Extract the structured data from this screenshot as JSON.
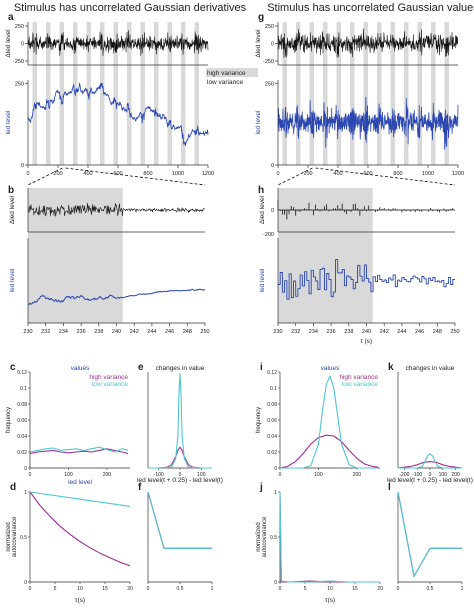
{
  "titles": {
    "left": "Stimulus has uncorrelated Gaussian derivatives",
    "right": "Stimulus has uncorrelated Gaussian values"
  },
  "annotations": {
    "high_variance": "high variance",
    "low_variance": "low variance"
  },
  "colors": {
    "trace_black": "#111111",
    "led_blue": "#2a46b0",
    "shade": "#d9d9d9",
    "high_variance": "#a03090",
    "low_variance": "#4cc6d4",
    "values_title": "#2a46b0"
  },
  "chart_data": [
    {
      "id": "a",
      "type": "line",
      "panel_letter": "a",
      "ylabel_top": "Δled level",
      "ylabel_bottom": "led level",
      "top_yticks": [
        250,
        0,
        -250
      ],
      "bottom_yticks": [
        250,
        0
      ],
      "xticks": [
        0,
        200,
        400,
        600,
        800,
        1000,
        1200
      ],
      "xlim": [
        0,
        1200
      ],
      "shaded_intervals": [
        [
          30,
          60
        ],
        [
          120,
          150
        ],
        [
          210,
          240
        ],
        [
          300,
          330
        ],
        [
          390,
          420
        ],
        [
          480,
          510
        ],
        [
          570,
          600
        ],
        [
          660,
          690
        ],
        [
          750,
          780
        ],
        [
          840,
          870
        ],
        [
          930,
          960
        ],
        [
          1020,
          1050
        ],
        [
          1110,
          1140
        ],
        [
          1200,
          1230
        ]
      ]
    },
    {
      "id": "b",
      "type": "line",
      "panel_letter": "b",
      "ylabel_top": "Δled level",
      "ylabel_bottom": "led level",
      "xticks": [
        230,
        232,
        234,
        236,
        238,
        240,
        242,
        244,
        246,
        248,
        250
      ],
      "xlim": [
        230,
        250
      ],
      "shaded_interval": [
        230,
        240.7
      ]
    },
    {
      "id": "g",
      "type": "line",
      "panel_letter": "g",
      "ylabel_top": "Δled level",
      "ylabel_bottom": "led level",
      "top_yticks": [
        250,
        0,
        -250
      ],
      "bottom_yticks": [
        250,
        0
      ],
      "xticks": [
        0,
        200,
        400,
        600,
        800,
        1000,
        1200
      ],
      "xlim": [
        0,
        1200
      ],
      "shaded_intervals": [
        [
          30,
          60
        ],
        [
          120,
          150
        ],
        [
          210,
          240
        ],
        [
          300,
          330
        ],
        [
          390,
          420
        ],
        [
          480,
          510
        ],
        [
          570,
          600
        ],
        [
          660,
          690
        ],
        [
          750,
          780
        ],
        [
          840,
          870
        ],
        [
          930,
          960
        ],
        [
          1020,
          1050
        ],
        [
          1110,
          1140
        ],
        [
          1200,
          1230
        ]
      ]
    },
    {
      "id": "h",
      "type": "line",
      "panel_letter": "h",
      "ylabel_top": "Δled level",
      "ylabel_bottom": "led level",
      "top_yticks": [
        0,
        -200
      ],
      "xticks": [
        230,
        232,
        234,
        236,
        238,
        240,
        242,
        244,
        246,
        248,
        250
      ],
      "xlim": [
        230,
        250
      ],
      "shaded_interval": [
        230,
        240.7
      ],
      "xlabel": "t (s)"
    },
    {
      "id": "c",
      "type": "line",
      "panel_letter": "c",
      "title": "values",
      "ylabel": "frequency",
      "xlabel": "led level",
      "ylim": [
        0,
        0.12
      ],
      "yticks": [
        0,
        0.02,
        0.04,
        0.06,
        0.08,
        0.1,
        0.12
      ],
      "xlim": [
        0,
        260
      ],
      "xticks": [
        0,
        100,
        200
      ],
      "legend": [
        "high variance",
        "low variance"
      ],
      "series": [
        {
          "name": "high variance",
          "x": [
            0,
            20,
            40,
            60,
            80,
            100,
            120,
            140,
            160,
            180,
            200,
            220,
            240,
            255
          ],
          "y": [
            0.018,
            0.02,
            0.021,
            0.022,
            0.02,
            0.019,
            0.02,
            0.021,
            0.02,
            0.022,
            0.024,
            0.022,
            0.02,
            0.018
          ]
        },
        {
          "name": "low variance",
          "x": [
            0,
            20,
            40,
            60,
            80,
            100,
            120,
            140,
            160,
            180,
            200,
            220,
            240,
            255
          ],
          "y": [
            0.02,
            0.022,
            0.024,
            0.025,
            0.022,
            0.023,
            0.024,
            0.022,
            0.024,
            0.026,
            0.023,
            0.02,
            0.024,
            0.022
          ]
        }
      ]
    },
    {
      "id": "e",
      "type": "line",
      "panel_letter": "e",
      "title": "changes in value",
      "xlabel": "led level(t + 0.25) - led level(t)",
      "ylim": [
        0,
        0.12
      ],
      "xlim": [
        -150,
        150
      ],
      "xticks": [
        -100,
        0,
        100
      ],
      "series": [
        {
          "name": "high variance",
          "x": [
            -150,
            -100,
            -60,
            -40,
            -20,
            -10,
            0,
            10,
            20,
            40,
            60,
            100,
            150
          ],
          "y": [
            0,
            0,
            0.001,
            0.004,
            0.014,
            0.022,
            0.026,
            0.022,
            0.014,
            0.004,
            0.001,
            0,
            0
          ]
        },
        {
          "name": "low variance",
          "x": [
            -150,
            -100,
            -40,
            -20,
            -10,
            -5,
            0,
            5,
            10,
            20,
            40,
            100,
            150
          ],
          "y": [
            0,
            0,
            0.001,
            0.012,
            0.04,
            0.09,
            0.118,
            0.09,
            0.04,
            0.012,
            0.001,
            0,
            0
          ]
        }
      ]
    },
    {
      "id": "d",
      "type": "line",
      "panel_letter": "d",
      "ylabel": "normalized autocovariance",
      "ylim": [
        0,
        1
      ],
      "yticks": [
        0,
        0.5,
        1
      ],
      "xlim": [
        0,
        20
      ],
      "xticks": [
        0,
        5,
        10,
        15,
        20
      ],
      "xlabel": "τ(s)",
      "series": [
        {
          "name": "high variance",
          "x": [
            0,
            2,
            4,
            6,
            8,
            10,
            12,
            14,
            16,
            18,
            20
          ],
          "y": [
            1,
            0.85,
            0.73,
            0.62,
            0.53,
            0.45,
            0.38,
            0.32,
            0.27,
            0.22,
            0.18
          ]
        },
        {
          "name": "low variance",
          "x": [
            0,
            5,
            10,
            15,
            20
          ],
          "y": [
            1,
            0.96,
            0.92,
            0.88,
            0.84
          ]
        }
      ]
    },
    {
      "id": "f",
      "type": "line",
      "panel_letter": "f",
      "ylim": [
        -0.6,
        1
      ],
      "xlim": [
        0,
        1
      ],
      "xticks": [
        0,
        0.5,
        1
      ],
      "series": [
        {
          "name": "high variance",
          "x": [
            0,
            0.25,
            0.5,
            0.75,
            1
          ],
          "y": [
            1,
            0,
            0,
            0,
            0
          ]
        },
        {
          "name": "low variance",
          "x": [
            0,
            0.25,
            0.5,
            0.75,
            1
          ],
          "y": [
            1,
            0,
            0,
            0,
            0
          ]
        }
      ]
    },
    {
      "id": "i",
      "type": "line",
      "panel_letter": "i",
      "title": "values",
      "ylabel": "frequency",
      "ylim": [
        0,
        0.12
      ],
      "yticks": [
        0,
        0.02,
        0.04,
        0.06,
        0.08,
        0.1,
        0.12
      ],
      "xlim": [
        0,
        260
      ],
      "xticks": [
        0,
        100,
        200
      ],
      "legend": [
        "high variance",
        "low variance"
      ],
      "series": [
        {
          "name": "high variance",
          "x": [
            0,
            20,
            40,
            60,
            80,
            100,
            120,
            140,
            160,
            180,
            200,
            220,
            240,
            255
          ],
          "y": [
            0,
            0.002,
            0.008,
            0.018,
            0.03,
            0.038,
            0.041,
            0.04,
            0.033,
            0.022,
            0.012,
            0.005,
            0.002,
            0.001
          ]
        },
        {
          "name": "low variance",
          "x": [
            0,
            60,
            80,
            100,
            110,
            120,
            130,
            140,
            150,
            160,
            180,
            200,
            255
          ],
          "y": [
            0,
            0,
            0.003,
            0.03,
            0.07,
            0.104,
            0.115,
            0.1,
            0.065,
            0.03,
            0.004,
            0,
            0
          ]
        }
      ]
    },
    {
      "id": "k",
      "type": "line",
      "panel_letter": "k",
      "title": "changes in value",
      "xlabel": "led level(t + 0.25) - led level(t)",
      "ylim": [
        0,
        0.12
      ],
      "xlim": [
        -250,
        250
      ],
      "xticks": [
        -200,
        -100,
        0,
        100,
        200
      ],
      "series": [
        {
          "name": "high variance",
          "x": [
            -250,
            -200,
            -150,
            -100,
            -50,
            0,
            50,
            100,
            150,
            200,
            250
          ],
          "y": [
            0,
            0.001,
            0.002,
            0.004,
            0.007,
            0.008,
            0.007,
            0.004,
            0.002,
            0.001,
            0
          ]
        },
        {
          "name": "low variance",
          "x": [
            -250,
            -100,
            -60,
            -40,
            -20,
            0,
            20,
            40,
            60,
            100,
            250
          ],
          "y": [
            0,
            0,
            0.002,
            0.008,
            0.015,
            0.018,
            0.015,
            0.008,
            0.002,
            0,
            0
          ]
        }
      ]
    },
    {
      "id": "j",
      "type": "line",
      "panel_letter": "j",
      "ylabel": "normalized autocovariance",
      "ylim": [
        0,
        1
      ],
      "yticks": [
        0,
        0.5,
        1
      ],
      "xlim": [
        0,
        20
      ],
      "xticks": [
        0,
        5,
        10,
        15,
        20
      ],
      "xlabel": "τ(s)",
      "series": [
        {
          "name": "high variance",
          "x": [
            0,
            0.25,
            2,
            6,
            10,
            14,
            20
          ],
          "y": [
            1,
            0,
            0,
            0.01,
            0,
            0,
            0
          ]
        },
        {
          "name": "low variance",
          "x": [
            0,
            0.25,
            2,
            6,
            10,
            14,
            20
          ],
          "y": [
            1,
            0.01,
            0,
            0,
            0.01,
            0,
            0
          ]
        }
      ]
    },
    {
      "id": "l",
      "type": "line",
      "panel_letter": "l",
      "ylim": [
        -0.6,
        1
      ],
      "xlim": [
        0,
        1
      ],
      "xticks": [
        0,
        0.5,
        1
      ],
      "series": [
        {
          "name": "high variance",
          "x": [
            0,
            0.25,
            0.5,
            0.75,
            1
          ],
          "y": [
            1,
            -0.5,
            0,
            0,
            0
          ]
        },
        {
          "name": "low variance",
          "x": [
            0,
            0.25,
            0.5,
            0.75,
            1
          ],
          "y": [
            1,
            -0.5,
            0,
            0,
            0
          ]
        }
      ]
    }
  ]
}
